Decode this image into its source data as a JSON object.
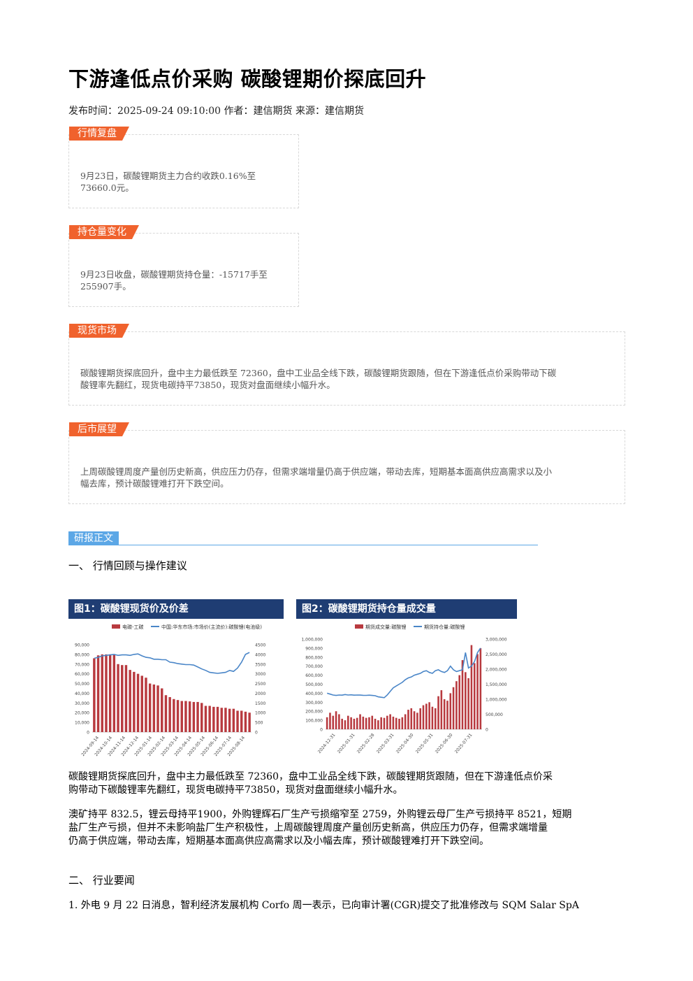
{
  "article": {
    "title": "下游逢低点价采购 碳酸锂期价探底回升",
    "meta": "发布时间：2025-09-24 09:10:00 作者：建信期货 来源：建信期货"
  },
  "cards": [
    {
      "tag": "行情复盘",
      "lines": [
        "9月23日，碳酸锂期货主力合约收跌0.16%至",
        "73660.0元。"
      ]
    },
    {
      "tag": "持仓量变化",
      "lines": [
        "9月23日收盘，碳酸锂期货持仓量：-15717手至",
        "255907手。"
      ]
    },
    {
      "tag": "现货市场",
      "lines": [
        "碳酸锂期货探底回升，盘中主力最低跌至 72360，盘中工业品全线下跌，碳酸锂期货跟随，但在下游逢低点价采购带动下碳",
        "酸锂率先翻红，现货电碳持平73850，现货对盘面继续小幅升水。"
      ]
    },
    {
      "tag": "后市展望",
      "lines": [
        "上周碳酸锂周度产量创历史新高，供应压力仍存，但需求端增量仍高于供应端，带动去库，短期基本面高供应高需求以及小",
        "幅去库，预计碳酸锂难打开下跌空间。"
      ]
    }
  ],
  "report": {
    "section_tag": "研报正文",
    "h1": "一、 行情回顾与操作建议",
    "para1": [
      "碳酸锂期货探底回升，盘中主力最低跌至 72360，盘中工业品全线下跌，碳酸锂期货跟随，但在下游逢低点价采",
      "购带动下碳酸锂率先翻红，现货电碳持平73850，现货对盘面继续小幅升水。"
    ],
    "para2": [
      "澳矿持平 832.5，锂云母持平1900，外购锂辉石厂生产亏损缩窄至 2759，外购锂云母厂生产亏损持平 8521，短期",
      "盐厂生产亏损，但并不未影响盐厂生产积极性，上周碳酸锂周度产量创历史新高，供应压力仍存，但需求端增量",
      "仍高于供应端，带动去库，短期基本面高供应高需求以及小幅去库，预计碳酸锂难打开下跌空间。"
    ],
    "h2": "二、 行业要闻",
    "para3": "1. 外电 9 月 22 日消息，智利经济发展机构 Corfo 周一表示，已向审计署(CGR)提交了批准修改与 SQM Salar SpA"
  },
  "chart_data": [
    {
      "type": "bar",
      "title": "图1：碳酸锂现货价及价差",
      "legend": [
        "电碳-工碳",
        "中国:华东市场:市场价(主流价):碳酸锂(电池级)"
      ],
      "categories": [
        "2024-09-14",
        "2024-10-14",
        "2024-11-14",
        "2024-12-14",
        "2025-01-14",
        "2025-02-14",
        "2025-03-14",
        "2025-04-14",
        "2025-05-14",
        "2025-06-14",
        "2025-07-14",
        "2025-08-14"
      ],
      "y_left_ticks": [
        "0",
        "10,000",
        "20,000",
        "30,000",
        "40,000",
        "50,000",
        "60,000",
        "70,000",
        "80,000",
        "90,000"
      ],
      "y_right_ticks": [
        "0",
        "500",
        "1000",
        "1500",
        "2000",
        "2500",
        "3000",
        "3500",
        "4000",
        "4500"
      ],
      "ylim_left": [
        0,
        90000
      ],
      "ylim_right": [
        0,
        4500
      ],
      "bars": [
        3800,
        3950,
        4000,
        4000,
        4000,
        4000,
        3500,
        3450,
        3450,
        3200,
        3100,
        3000,
        2900,
        2800,
        2500,
        2450,
        2400,
        2250,
        1900,
        1800,
        1700,
        1650,
        1600,
        1600,
        1580,
        1550,
        1550,
        1500,
        1350,
        1350,
        1300,
        1300,
        1250,
        1250,
        1200,
        1200,
        1100,
        1100,
        1050,
        1000
      ],
      "line": [
        76000,
        77000,
        78500,
        79000,
        79500,
        80000,
        79000,
        79500,
        79500,
        79000,
        80000,
        80500,
        78500,
        77000,
        76500,
        75000,
        75000,
        74500,
        74500,
        72000,
        71500,
        70500,
        70000,
        69500,
        69500,
        69000,
        67000,
        65000,
        63500,
        61500,
        61000,
        60500,
        61000,
        61500,
        63500,
        62500,
        66000,
        72000,
        80000,
        82000
      ]
    },
    {
      "type": "bar",
      "title": "图2：碳酸锂期货持仓量成交量",
      "legend": [
        "期货成交量:碳酸锂",
        "期货持仓量:碳酸锂"
      ],
      "categories": [
        "2024-12-31",
        "2025-01-31",
        "2025-02-28",
        "2025-03-31",
        "2025-04-30",
        "2025-05-31",
        "2025-06-30",
        "2025-07-31"
      ],
      "y_left_ticks": [
        "0",
        "100,000",
        "200,000",
        "300,000",
        "400,000",
        "500,000",
        "600,000",
        "700,000",
        "800,000",
        "900,000",
        "1,000,000"
      ],
      "y_right_ticks": [
        "0",
        "500,000",
        "1,000,000",
        "1,500,000",
        "2,000,000",
        "2,500,000",
        "3,000,000"
      ],
      "ylim_left": [
        0,
        1000000
      ],
      "ylim_right": [
        0,
        3000000
      ],
      "bars": [
        400000,
        550000,
        450000,
        600000,
        500000,
        350000,
        300000,
        450000,
        400000,
        350000,
        380000,
        500000,
        420000,
        380000,
        400000,
        450000,
        350000,
        300000,
        400000,
        380000,
        450000,
        500000,
        420000,
        380000,
        350000,
        400000,
        500000,
        650000,
        700000,
        600000,
        550000,
        700000,
        800000,
        850000,
        900000,
        750000,
        700000,
        1100000,
        1300000,
        1000000,
        950000,
        1200000,
        1400000,
        1600000,
        1800000,
        2300000,
        1900000,
        1700000,
        2800000,
        2200000,
        2500000,
        2700000
      ],
      "line": [
        400000,
        390000,
        380000,
        375000,
        380000,
        378000,
        385000,
        380000,
        382000,
        378000,
        380000,
        379000,
        377000,
        376000,
        378000,
        375000,
        372000,
        360000,
        355000,
        350000,
        380000,
        420000,
        460000,
        480000,
        500000,
        520000,
        550000,
        570000,
        580000,
        600000,
        610000,
        620000,
        640000,
        650000,
        630000,
        620000,
        650000,
        660000,
        640000,
        630000,
        650000,
        700000,
        660000,
        640000,
        650000,
        660000,
        850000,
        680000,
        700000,
        750000,
        850000,
        900000
      ]
    }
  ]
}
